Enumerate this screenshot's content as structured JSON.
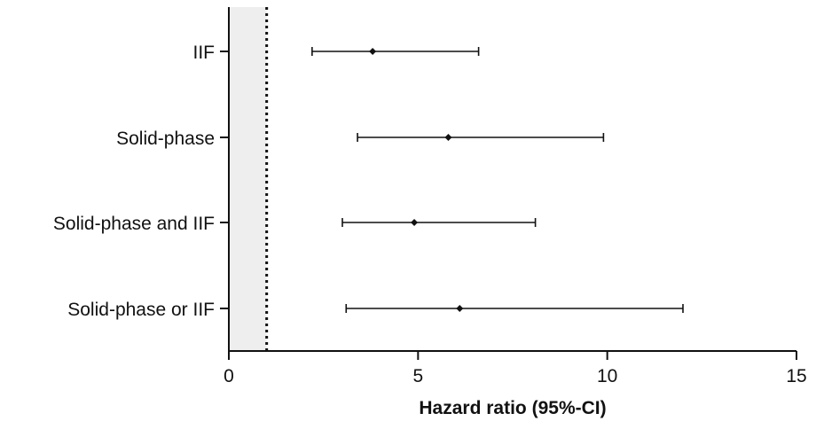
{
  "chart_data": {
    "type": "forest",
    "title": "",
    "xlabel": "Hazard ratio (95%-CI)",
    "ylabel": "",
    "xlim": [
      0,
      15
    ],
    "xticks": [
      0,
      5,
      10,
      15
    ],
    "reference_line": 1,
    "shaded_region": [
      0,
      1
    ],
    "grid": false,
    "rows": [
      {
        "label": "IIF",
        "estimate": 3.8,
        "lower": 2.2,
        "upper": 6.6
      },
      {
        "label": "Solid-phase",
        "estimate": 5.8,
        "lower": 3.4,
        "upper": 9.9
      },
      {
        "label": "Solid-phase and IIF",
        "estimate": 4.9,
        "lower": 3.0,
        "upper": 8.1
      },
      {
        "label": "Solid-phase or IIF",
        "estimate": 6.1,
        "lower": 3.1,
        "upper": 12.0
      }
    ],
    "colors": {
      "marks": "#111111",
      "shade": "#eeeeee",
      "axis": "#111111"
    }
  }
}
